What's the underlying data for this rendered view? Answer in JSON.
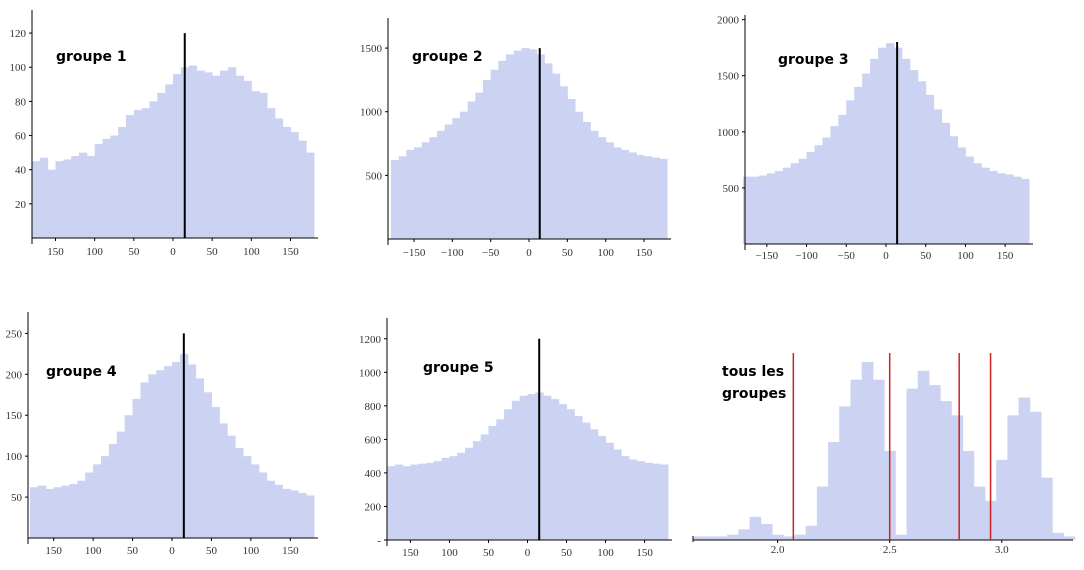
{
  "chart_data": [
    {
      "type": "bar",
      "title": "groupe 1",
      "bar_color": "#ccd3f2",
      "marker_color": "#000000",
      "xlim": [
        -180,
        180
      ],
      "ylim": [
        0,
        130
      ],
      "bin_width": 10,
      "x_start": -180,
      "values": [
        45,
        47,
        40,
        45,
        46,
        48,
        50,
        48,
        55,
        58,
        60,
        65,
        72,
        75,
        76,
        80,
        85,
        90,
        96,
        100,
        101,
        98,
        97,
        95,
        98,
        100,
        95,
        92,
        86,
        85,
        76,
        70,
        65,
        62,
        57,
        50
      ],
      "xtick_values": [
        -150,
        -100,
        -50,
        0,
        50,
        100,
        150
      ],
      "xtick_labels": [
        "150",
        "100",
        "50",
        "0",
        "50",
        "100",
        "150"
      ],
      "ytick_values": [
        20,
        40,
        60,
        80,
        100,
        120
      ],
      "ytick_labels": [
        "20",
        "40",
        "60",
        "80",
        "100",
        "120"
      ],
      "marker_x": 15,
      "marker_top": 120
    },
    {
      "type": "bar",
      "title": "groupe 2",
      "bar_color": "#ccd3f2",
      "marker_color": "#000000",
      "xlim": [
        -180,
        180
      ],
      "ylim": [
        0,
        1650
      ],
      "bin_width": 10,
      "x_start": -180,
      "values": [
        620,
        650,
        700,
        720,
        760,
        800,
        850,
        900,
        950,
        1000,
        1080,
        1150,
        1250,
        1330,
        1400,
        1450,
        1480,
        1500,
        1490,
        1450,
        1380,
        1300,
        1200,
        1100,
        1000,
        920,
        850,
        800,
        760,
        720,
        700,
        680,
        660,
        650,
        640,
        630
      ],
      "xtick_values": [
        -150,
        -100,
        -50,
        0,
        50,
        100,
        150
      ],
      "xtick_labels": [
        "−150",
        "−100",
        "−50",
        "0",
        "50",
        "100",
        "150"
      ],
      "ytick_values": [
        500,
        1000,
        1500
      ],
      "ytick_labels": [
        "500",
        "1000",
        "1500"
      ],
      "marker_x": 14,
      "marker_top": 1500
    },
    {
      "type": "bar",
      "title": "groupe 3",
      "bar_color": "#ccd3f2",
      "marker_color": "#000000",
      "xlim": [
        -180,
        180
      ],
      "ylim": [
        0,
        2050
      ],
      "bin_width": 10,
      "x_start": -180,
      "values": [
        600,
        600,
        610,
        630,
        650,
        680,
        720,
        760,
        820,
        880,
        950,
        1050,
        1150,
        1280,
        1400,
        1520,
        1650,
        1750,
        1790,
        1750,
        1650,
        1550,
        1450,
        1330,
        1200,
        1080,
        960,
        860,
        780,
        720,
        680,
        650,
        630,
        620,
        600,
        580
      ],
      "xtick_values": [
        -150,
        -100,
        -50,
        0,
        50,
        100,
        150
      ],
      "xtick_labels": [
        "−150",
        "−100",
        "−50",
        "0",
        "50",
        "100",
        "150"
      ],
      "ytick_values": [
        500,
        1000,
        1500,
        2000
      ],
      "ytick_labels": [
        "500",
        "1000",
        "1500",
        "2000"
      ],
      "marker_x": 14,
      "marker_top": 1800
    },
    {
      "type": "bar",
      "title": "groupe 4",
      "bar_color": "#ccd3f2",
      "marker_color": "#000000",
      "xlim": [
        -180,
        180
      ],
      "ylim": [
        0,
        270
      ],
      "bin_width": 10,
      "x_start": -180,
      "values": [
        62,
        64,
        60,
        62,
        64,
        66,
        70,
        80,
        90,
        100,
        115,
        130,
        150,
        170,
        190,
        200,
        205,
        210,
        215,
        225,
        212,
        195,
        178,
        160,
        140,
        125,
        110,
        100,
        90,
        80,
        70,
        65,
        60,
        58,
        55,
        52
      ],
      "xtick_values": [
        -150,
        -100,
        -50,
        0,
        50,
        100,
        150
      ],
      "xtick_labels": [
        "150",
        "100",
        "50",
        "0",
        "50",
        "100",
        "150"
      ],
      "ytick_values": [
        50,
        100,
        150,
        200,
        250
      ],
      "ytick_labels": [
        "50",
        "100",
        "150",
        "200",
        "250"
      ],
      "marker_x": 15,
      "marker_top": 250
    },
    {
      "type": "bar",
      "title": "groupe 5",
      "bar_color": "#ccd3f2",
      "marker_color": "#000000",
      "xlim": [
        -180,
        180
      ],
      "ylim": [
        0,
        1300
      ],
      "bin_width": 10,
      "x_start": -180,
      "values": [
        440,
        450,
        440,
        450,
        455,
        460,
        470,
        490,
        500,
        520,
        550,
        590,
        630,
        680,
        720,
        780,
        830,
        860,
        870,
        880,
        860,
        840,
        810,
        780,
        740,
        700,
        660,
        620,
        580,
        540,
        500,
        480,
        470,
        460,
        455,
        450
      ],
      "xtick_values": [
        -150,
        -100,
        -50,
        0,
        50,
        100,
        150
      ],
      "xtick_labels": [
        "150",
        "100",
        "50",
        "0",
        "50",
        "100",
        "150"
      ],
      "ytick_values": [
        0,
        200,
        400,
        600,
        800,
        1000,
        1200
      ],
      "ytick_labels": [
        "-",
        "200",
        "400",
        "600",
        "800",
        "1000",
        "1200"
      ],
      "marker_x": 15,
      "marker_top": 1200
    },
    {
      "type": "bar",
      "title": "tous les groupes",
      "title_lines": [
        "tous les",
        "groupes"
      ],
      "bar_color": "#ccd3f2",
      "marker_color": "#cc2222",
      "xlim": [
        1.6,
        3.3
      ],
      "ylim": [
        0,
        1.05
      ],
      "bin_width": 0.05,
      "x_start": 1.625,
      "values": [
        0.02,
        0.02,
        0.02,
        0.03,
        0.06,
        0.13,
        0.09,
        0.03,
        0.02,
        0.03,
        0.08,
        0.3,
        0.55,
        0.75,
        0.9,
        1.0,
        0.9,
        0.5,
        0.03,
        0.85,
        0.95,
        0.87,
        0.78,
        0.7,
        0.5,
        0.3,
        0.22,
        0.45,
        0.7,
        0.8,
        0.72,
        0.35,
        0.04,
        0.02
      ],
      "xtick_values": [
        2.0,
        2.5,
        3.0
      ],
      "xtick_labels": [
        "2.0",
        "2.5",
        "3.0"
      ],
      "ytick_values": [],
      "ytick_labels": [],
      "marker_lines": [
        2.07,
        2.5,
        2.81,
        2.95
      ],
      "marker_top": 1.0
    }
  ]
}
